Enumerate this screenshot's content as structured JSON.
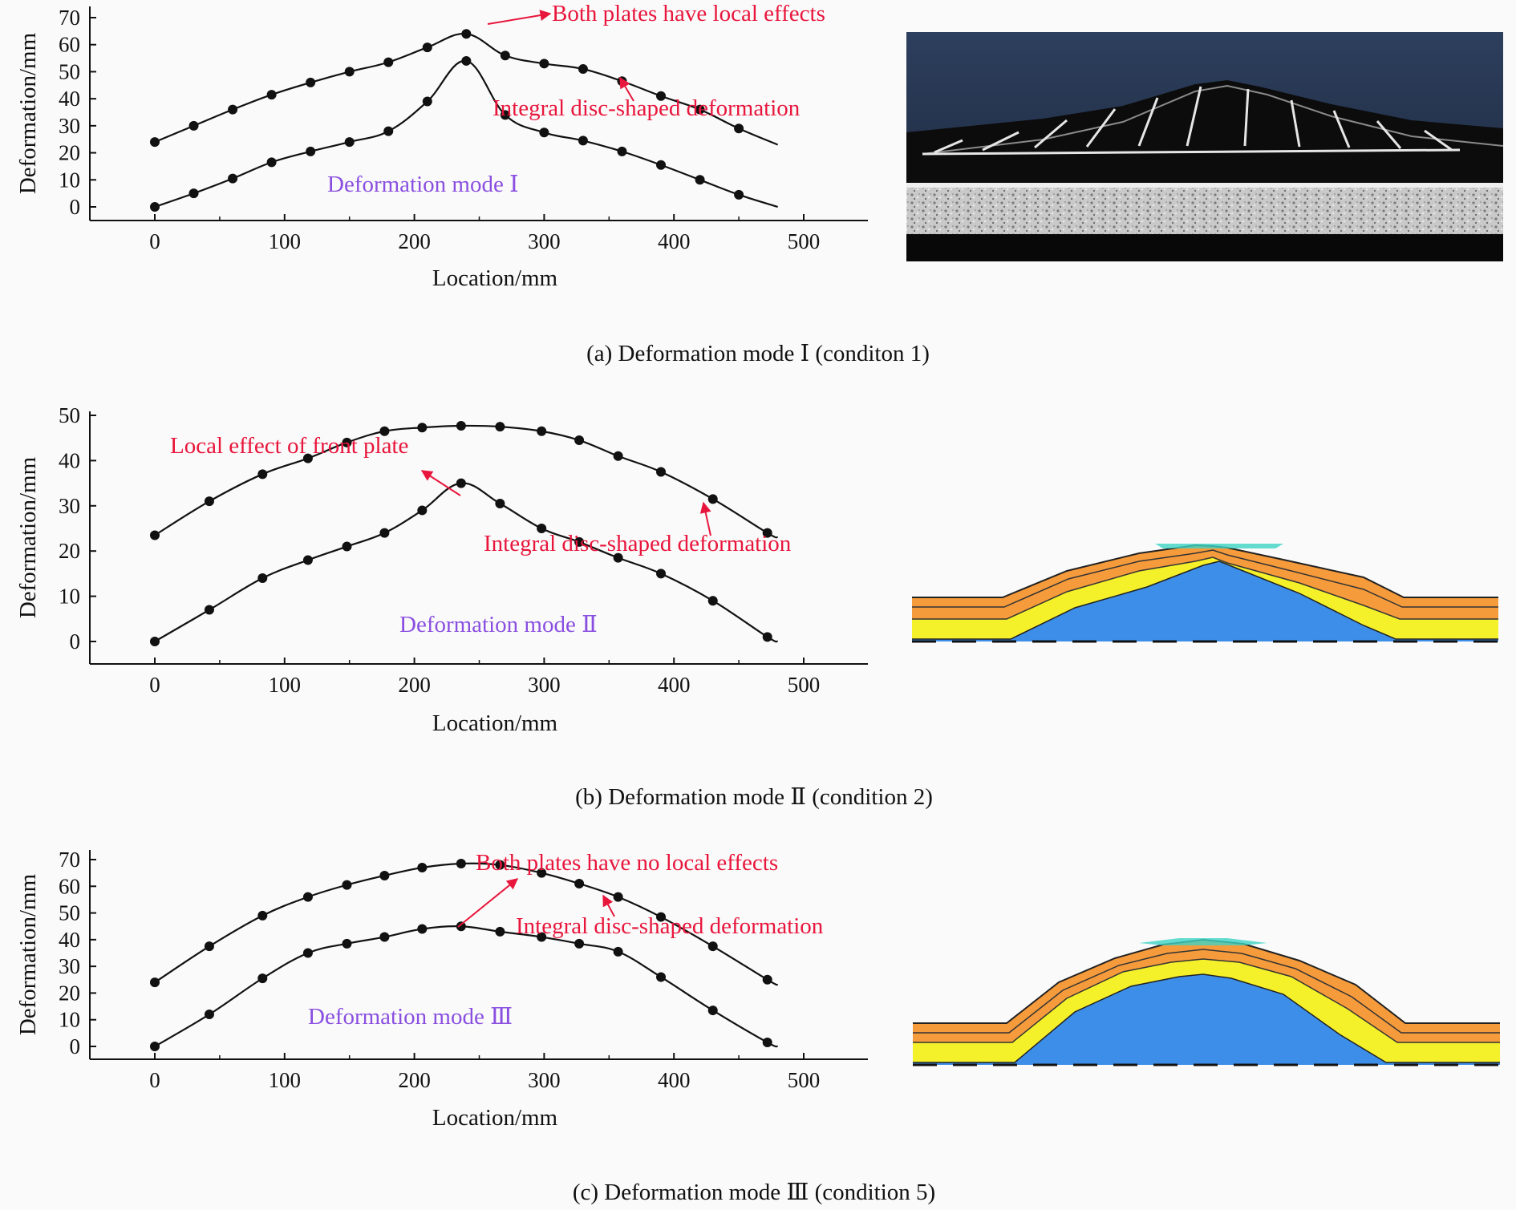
{
  "chart_data": [
    {
      "type": "line",
      "id": "a",
      "caption": "(a) Deformation mode Ⅰ (conditon 1)",
      "xlabel": "Location/mm",
      "ylabel": "Deformation/mm",
      "xticks": [
        0,
        100,
        200,
        300,
        400,
        500
      ],
      "yticks": [
        0,
        10,
        20,
        30,
        40,
        50,
        60,
        70
      ],
      "xlim": [
        -50,
        550
      ],
      "ylim": [
        -5,
        75
      ],
      "series": [
        {
          "x": [
            0,
            30,
            60,
            90,
            120,
            150,
            180,
            210,
            240,
            270,
            300,
            330,
            360,
            390,
            420,
            450,
            480
          ],
          "y": [
            24,
            30,
            36,
            41.5,
            46,
            50,
            53.5,
            59,
            64,
            56,
            53,
            51,
            46.5,
            41,
            36,
            29,
            23
          ]
        },
        {
          "x": [
            0,
            30,
            60,
            90,
            120,
            150,
            180,
            210,
            240,
            270,
            300,
            330,
            360,
            390,
            420,
            450,
            480
          ],
          "y": [
            0,
            5,
            10.5,
            16.5,
            20.5,
            24,
            28,
            39,
            54,
            34,
            27.5,
            24.5,
            20.5,
            15.5,
            10,
            4.5,
            0
          ]
        }
      ],
      "annotations": [
        {
          "text": "Both plates have local effects",
          "color": "#e8163c"
        },
        {
          "text": "Integral disc-shaped deformation",
          "color": "#e8163c"
        },
        {
          "text": "Deformation mode Ⅰ",
          "color": "#8a4fe0"
        }
      ],
      "image": "photo-of-deformed-sandwich-plate"
    },
    {
      "type": "line",
      "id": "b",
      "caption": "(b) Deformation mode Ⅱ (condition 2)",
      "xlabel": "Location/mm",
      "ylabel": "Deformation/mm",
      "xticks": [
        0,
        100,
        200,
        300,
        400,
        500
      ],
      "yticks": [
        0,
        10,
        20,
        30,
        40,
        50
      ],
      "xlim": [
        -50,
        550
      ],
      "ylim": [
        -5,
        50
      ],
      "series": [
        {
          "x": [
            0,
            42,
            83,
            118,
            148,
            177,
            206,
            236,
            266,
            298,
            327,
            357,
            390,
            430,
            472,
            480
          ],
          "y": [
            23.5,
            31,
            37,
            40.5,
            44,
            46.5,
            47.3,
            47.7,
            47.5,
            46.5,
            44.5,
            41,
            37.5,
            31.5,
            24,
            23
          ]
        },
        {
          "x": [
            0,
            42,
            83,
            118,
            148,
            177,
            206,
            236,
            266,
            298,
            327,
            357,
            390,
            430,
            472,
            480
          ],
          "y": [
            0,
            7,
            14,
            18,
            21,
            24,
            29,
            35,
            30.5,
            25,
            22,
            18.5,
            15,
            9,
            1,
            0
          ]
        }
      ],
      "annotations": [
        {
          "text": "Local effect of front plate",
          "color": "#e8163c"
        },
        {
          "text": "Integral disc-shaped deformation",
          "color": "#e8163c"
        },
        {
          "text": "Deformation mode Ⅱ",
          "color": "#8a4fe0"
        }
      ],
      "image": "fe-layered-cross-section"
    },
    {
      "type": "line",
      "id": "c",
      "caption": "(c) Deformation mode Ⅲ (condition 5)",
      "xlabel": "Location/mm",
      "ylabel": "Deformation/mm",
      "xticks": [
        0,
        100,
        200,
        300,
        400,
        500
      ],
      "yticks": [
        0,
        10,
        20,
        30,
        40,
        50,
        60,
        70
      ],
      "xlim": [
        -50,
        550
      ],
      "ylim": [
        -5,
        75
      ],
      "series": [
        {
          "x": [
            0,
            42,
            83,
            118,
            148,
            177,
            206,
            236,
            266,
            298,
            327,
            357,
            390,
            430,
            472,
            480
          ],
          "y": [
            24,
            37.5,
            49,
            56,
            60.5,
            64,
            67,
            68.5,
            68,
            65,
            61,
            56,
            48.5,
            37.5,
            25,
            23
          ]
        },
        {
          "x": [
            0,
            42,
            83,
            118,
            148,
            177,
            206,
            236,
            266,
            298,
            327,
            357,
            390,
            430,
            472,
            480
          ],
          "y": [
            0,
            12,
            25.5,
            35,
            38.5,
            41,
            44,
            45,
            43,
            41,
            38.5,
            35.5,
            26,
            13.5,
            1.5,
            0
          ]
        }
      ],
      "annotations": [
        {
          "text": "Both plates have no local effects",
          "color": "#e8163c"
        },
        {
          "text": "Integral disc-shaped deformation",
          "color": "#e8163c"
        },
        {
          "text": "Deformation mode Ⅲ",
          "color": "#8a4fe0"
        }
      ],
      "image": "fe-layered-cross-section"
    }
  ]
}
